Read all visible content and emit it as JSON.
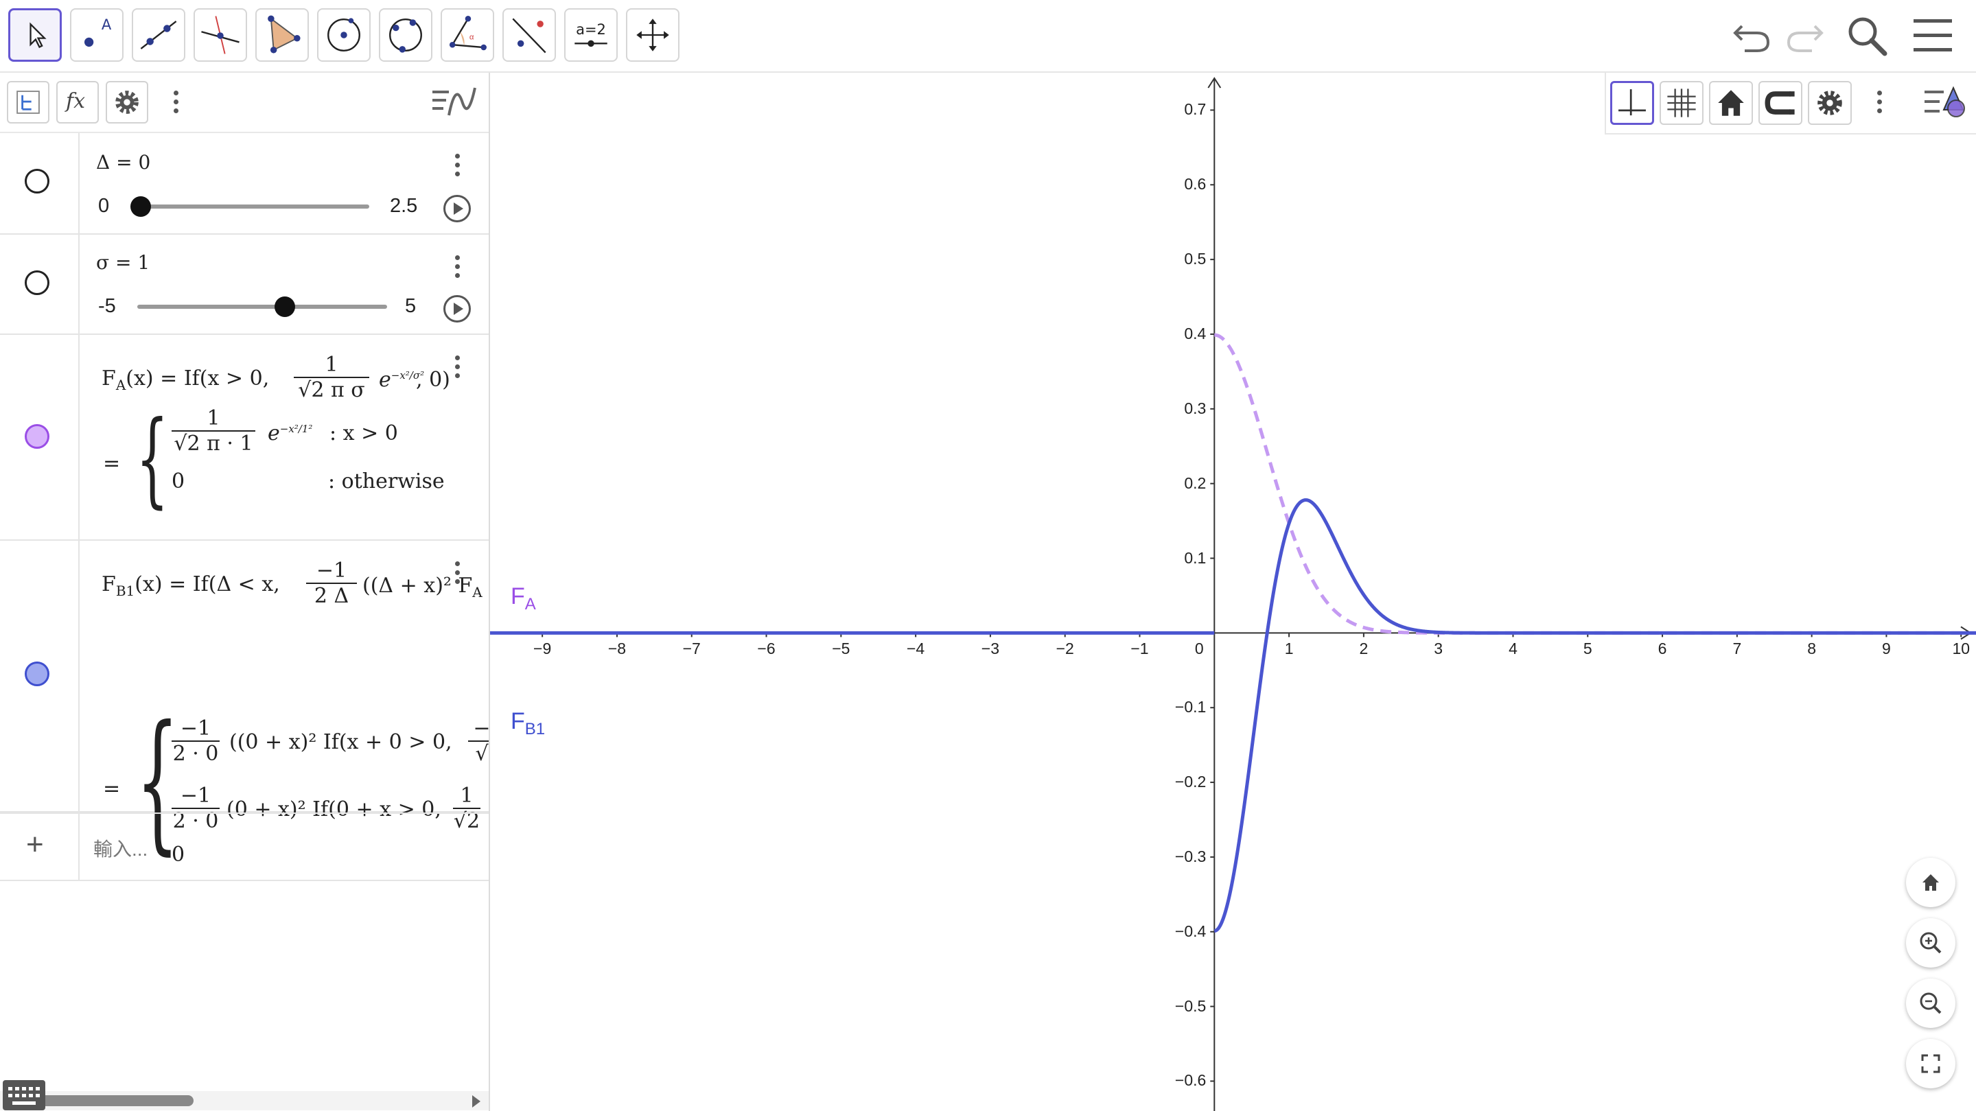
{
  "toolbar": {
    "tools": [
      {
        "name": "move-tool",
        "icon": "arrow-pointer-icon",
        "selected": true
      },
      {
        "name": "point-tool",
        "icon": "point-icon",
        "label": "A"
      },
      {
        "name": "line-tool",
        "icon": "line-icon"
      },
      {
        "name": "perpendicular-tool",
        "icon": "perpendicular-line-icon"
      },
      {
        "name": "polygon-tool",
        "icon": "polygon-icon"
      },
      {
        "name": "circle-center-tool",
        "icon": "circle-center-icon"
      },
      {
        "name": "circle-three-points-tool",
        "icon": "circle-points-icon"
      },
      {
        "name": "angle-tool",
        "icon": "angle-icon"
      },
      {
        "name": "reflect-tool",
        "icon": "reflect-icon"
      },
      {
        "name": "slider-tool",
        "icon": "slider-icon",
        "label": "a=2"
      },
      {
        "name": "move-graphics-tool",
        "icon": "move-arrows-icon"
      }
    ],
    "right": [
      "undo-icon",
      "redo-icon",
      "search-icon",
      "hamburger-menu-icon"
    ]
  },
  "algebra": {
    "header_icons": [
      "tree-view-icon",
      "fx-icon",
      "settings-gear-icon",
      "more-vert-icon",
      "algebra-style-icon"
    ],
    "fx_label": "fx",
    "items": [
      {
        "type": "slider",
        "label": "Δ = 0",
        "min": "0",
        "max": "2.5",
        "value_fraction": 0.0
      },
      {
        "type": "slider",
        "label": "σ = 1",
        "min": "-5",
        "max": "5",
        "value_fraction": 0.6
      },
      {
        "type": "function",
        "color": "#cc99ff",
        "def_name": "F",
        "def_sub": "A",
        "def_text": "(x) = If(x > 0, ",
        "def_frac_num": "1",
        "def_frac_den": "√2 π σ",
        "def_exp": "e",
        "def_exp_sup": "−x²/σ²",
        "def_tail": ", 0)",
        "result": {
          "case1_num": "1",
          "case1_den": "√2 π · 1",
          "case1_exp": "e",
          "case1_exp_sup": "−x²/1²",
          "case1_cond": ": x > 0",
          "case2_val": "0",
          "case2_cond": ": otherwise"
        }
      },
      {
        "type": "function",
        "color": "#9faaf0",
        "def_name": "F",
        "def_sub": "B1",
        "def_text": "(x) = If(Δ < x, ",
        "def_frac_num": "−1",
        "def_frac_den": "2 Δ",
        "def_tail": "((Δ + x)² F",
        "def_tail_sub": "A",
        "result": {
          "r1_num": "−1",
          "r1_den": "2 · 0",
          "r1_tail": "((0 + x)² If(x + 0 > 0, ",
          "r1_clip_num": "−",
          "r1_clip_den": "√",
          "r2_num": "−1",
          "r2_den": "2 · 0",
          "r2_tail": "(0 + x)² If(0 + x > 0, ",
          "r2_clip_num": "1",
          "r2_clip_den": "√2",
          "r3_val": "0"
        }
      }
    ],
    "input_placeholder": "輸入..."
  },
  "graphics": {
    "toolbar_icons": [
      "axes-icon",
      "grid-icon",
      "home-icon",
      "magnet-icon",
      "settings-gear-icon",
      "more-vert-icon",
      "graphics-style-icon"
    ],
    "side_buttons": [
      "home-icon",
      "zoom-in-icon",
      "zoom-out-icon",
      "fullscreen-icon"
    ],
    "curve_labels": [
      {
        "name": "F",
        "sub": "A",
        "color": "#9a4ee6"
      },
      {
        "name": "F",
        "sub": "B1",
        "color": "#3f4fcf"
      }
    ]
  },
  "chart_data": {
    "type": "line",
    "title": "",
    "xlabel": "",
    "ylabel": "",
    "xlim": [
      -9.7,
      10.2
    ],
    "ylim": [
      -0.64,
      0.75
    ],
    "x_ticks": [
      "−9",
      "−8",
      "−7",
      "−6",
      "−5",
      "−4",
      "−3",
      "−2",
      "−1",
      "0",
      "1",
      "2",
      "3",
      "4",
      "5",
      "6",
      "7",
      "8",
      "9",
      "10"
    ],
    "y_ticks": [
      "0.7",
      "0.6",
      "0.5",
      "0.4",
      "0.3",
      "0.2",
      "0.1",
      "−0.1",
      "−0.2",
      "−0.3",
      "−0.4",
      "−0.5",
      "−0.6"
    ],
    "grid": false,
    "series": [
      {
        "name": "F_A",
        "style": "dashed",
        "color": "#c49af2",
        "sigma": 1
      },
      {
        "name": "F_B1",
        "style": "solid",
        "color": "#4a55d0",
        "sigma": 1
      }
    ]
  }
}
